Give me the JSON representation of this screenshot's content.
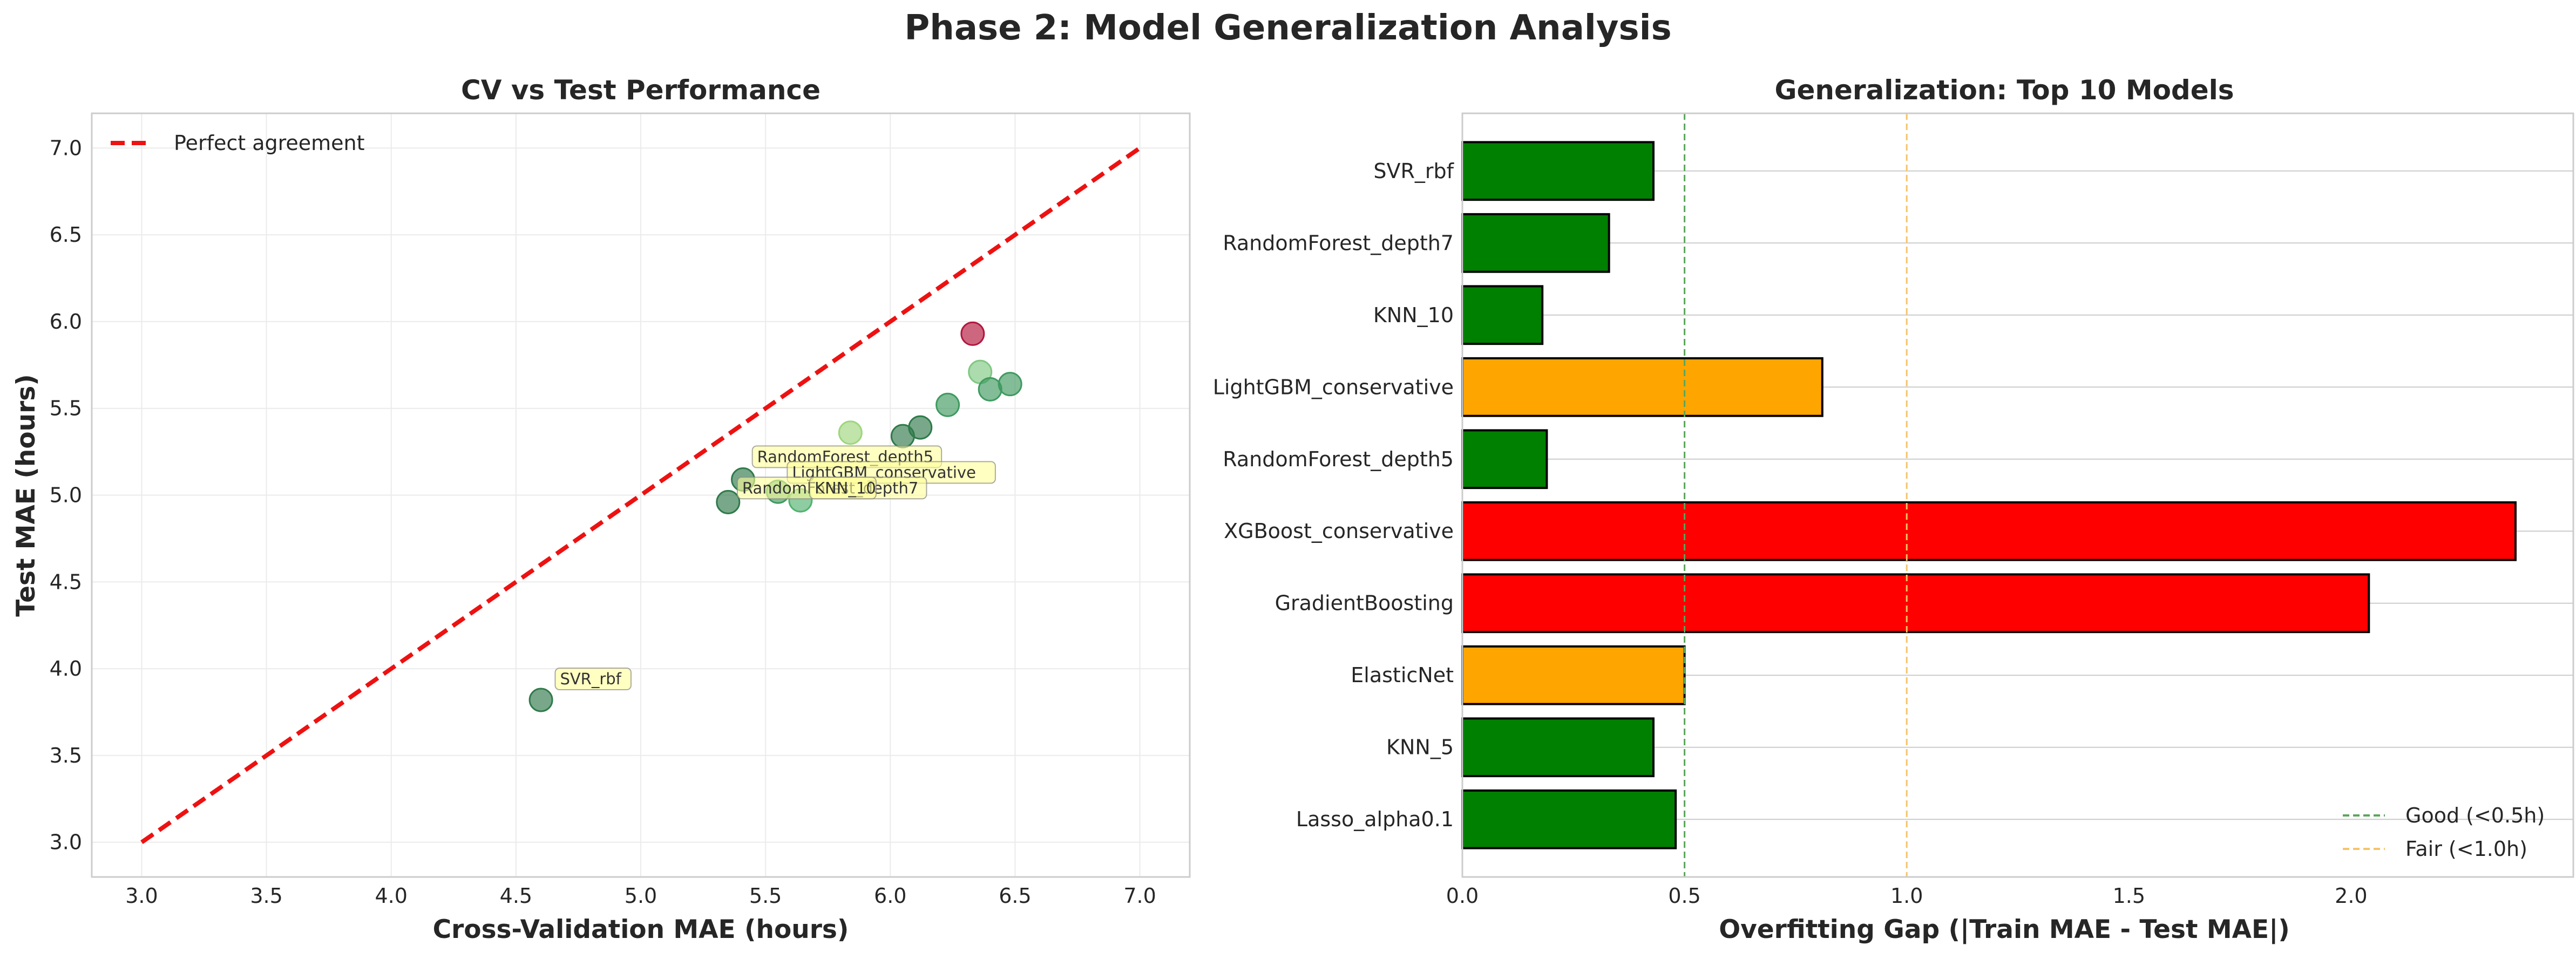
{
  "figure": {
    "suptitle": "Phase 2: Model Generalization Analysis"
  },
  "chart_data": [
    {
      "type": "scatter",
      "title": "CV vs Test Performance",
      "xlabel": "Cross-Validation MAE (hours)",
      "ylabel": "Test MAE (hours)",
      "xlim": [
        2.8,
        7.2
      ],
      "ylim": [
        2.8,
        7.2
      ],
      "xticks": [
        "3.0",
        "3.5",
        "4.0",
        "4.5",
        "5.0",
        "5.5",
        "6.0",
        "6.5",
        "7.0"
      ],
      "yticks": [
        "3.0",
        "3.5",
        "4.0",
        "4.5",
        "5.0",
        "5.5",
        "6.0",
        "6.5",
        "7.0"
      ],
      "grid": true,
      "legend": {
        "placement": "top-left",
        "entries": [
          "Perfect agreement"
        ]
      },
      "reference_line": {
        "name": "Perfect agreement",
        "x": [
          3.0,
          7.0
        ],
        "y": [
          3.0,
          7.0
        ],
        "color": "#ee1111",
        "style": "dashed"
      },
      "points": [
        {
          "x": 4.6,
          "y": 3.82,
          "color": "#2f7a4a"
        },
        {
          "x": 5.35,
          "y": 4.96,
          "color": "#2f7a4a"
        },
        {
          "x": 5.41,
          "y": 5.09,
          "color": "#2f7a4a"
        },
        {
          "x": 5.55,
          "y": 5.02,
          "color": "#3f9a60"
        },
        {
          "x": 5.64,
          "y": 4.97,
          "color": "#52b26f"
        },
        {
          "x": 5.84,
          "y": 5.36,
          "color": "#9ed67d"
        },
        {
          "x": 6.05,
          "y": 5.34,
          "color": "#2f7a4a"
        },
        {
          "x": 6.12,
          "y": 5.39,
          "color": "#2f7a4a"
        },
        {
          "x": 6.23,
          "y": 5.52,
          "color": "#3f9a60"
        },
        {
          "x": 6.33,
          "y": 5.93,
          "color": "#b2163c"
        },
        {
          "x": 6.36,
          "y": 5.71,
          "color": "#7fc882"
        },
        {
          "x": 6.4,
          "y": 5.61,
          "color": "#3f9a60"
        },
        {
          "x": 6.48,
          "y": 5.64,
          "color": "#3f9a60"
        }
      ],
      "annotations": [
        {
          "text": "SVR_rbf",
          "x": 4.6,
          "y": 3.82,
          "dx": 0.07,
          "dy": 0.09
        },
        {
          "text": "RandomForest_depth5",
          "x": 5.41,
          "y": 5.09,
          "dx": 0.05,
          "dy": 0.1
        },
        {
          "text": "LightGBM_conservative",
          "x": 5.55,
          "y": 5.02,
          "dx": 0.05,
          "dy": 0.08
        },
        {
          "text": "RandomForest_depth7",
          "x": 5.35,
          "y": 4.96,
          "dx": 0.05,
          "dy": 0.05
        },
        {
          "text": "KNN_10",
          "x": 5.64,
          "y": 4.97,
          "dx": 0.05,
          "dy": 0.04
        }
      ]
    },
    {
      "type": "bar",
      "orientation": "horizontal",
      "title": "Generalization: Top 10 Models",
      "xlabel": "Overfitting Gap (|Train MAE - Test MAE|)",
      "ylabel": "",
      "xlim": [
        0,
        2.5
      ],
      "xticks": [
        "0.0",
        "0.5",
        "1.0",
        "1.5",
        "2.0"
      ],
      "grid": true,
      "categories": [
        "Lasso_alpha0.1",
        "KNN_5",
        "ElasticNet",
        "GradientBoosting",
        "XGBoost_conservative",
        "RandomForest_depth5",
        "LightGBM_conservative",
        "KNN_10",
        "RandomForest_depth7",
        "SVR_rbf"
      ],
      "values": [
        0.48,
        0.43,
        0.5,
        2.04,
        2.37,
        0.19,
        0.81,
        0.18,
        0.33,
        0.43
      ],
      "colors": [
        "#008000",
        "#008000",
        "#ffa500",
        "#ff0000",
        "#ff0000",
        "#008000",
        "#ffa500",
        "#008000",
        "#008000",
        "#008000"
      ],
      "thresholds": [
        {
          "name": "Good (<0.5h)",
          "x": 0.5,
          "color": "#5aa55a"
        },
        {
          "name": "Fair (<1.0h)",
          "x": 1.0,
          "color": "#f5c46a"
        }
      ],
      "legend": {
        "placement": "bottom-right",
        "entries": [
          "Good (<0.5h)",
          "Fair (<1.0h)"
        ]
      }
    }
  ]
}
